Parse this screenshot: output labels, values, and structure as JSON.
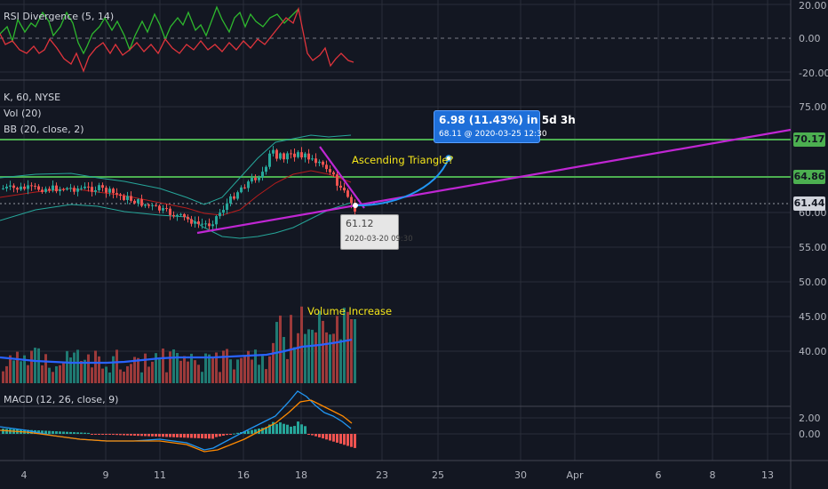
{
  "panes": {
    "rsi": {
      "title": "RSI Divergence (5, 14)",
      "y_ticks": [
        "20.00",
        "0.00",
        "-20.00"
      ]
    },
    "price": {
      "symbol_line": "K, 60, NYSE",
      "vol_line": "Vol (20)",
      "bb_line": "BB (20, close, 2)",
      "y_ticks": [
        "75.00",
        "60.00",
        "55.00",
        "50.00",
        "45.00",
        "40.00"
      ],
      "price_tags": [
        {
          "value": "70.17",
          "color": "#4caf50"
        },
        {
          "value": "64.86",
          "color": "#4caf50"
        },
        {
          "value": "61.44",
          "color": "#d1d4dc"
        }
      ]
    },
    "macd": {
      "title": "MACD (12, 26, close, 9)",
      "y_ticks": [
        "2.00",
        "0.00"
      ]
    }
  },
  "annotations": {
    "pattern": "Ascending Triangle?",
    "volume": "Volume Increase",
    "projection_main": "6.98 (11.43%) in 5d 3h",
    "projection_sub": "68.11 @ 2020-03-25  12:30",
    "low_value": "61.12",
    "low_time": "2020-03-20 09:30"
  },
  "x_axis": [
    "4",
    "9",
    "11",
    "16",
    "18",
    "23",
    "25",
    "30",
    "Apr",
    "6",
    "8",
    "13"
  ],
  "colors": {
    "background": "#131722",
    "up": "#26a69a",
    "down": "#ef5350",
    "trendline": "#c026d3",
    "resistance": "#4caf50",
    "projection": "#2196f3",
    "annotation": "#f5e61a"
  }
}
